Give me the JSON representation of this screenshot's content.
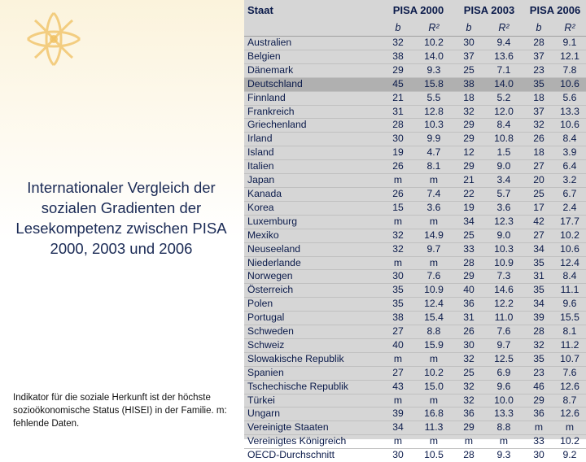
{
  "title": "Internationaler Vergleich der sozialen Gradienten der Lesekompetenz zwischen PISA 2000, 2003 und 2006",
  "footnote": "Indikator für die soziale Herkunft ist der höchste sozioökonomische Status (HISEI) in der Familie. m: fehlende Daten.",
  "colors": {
    "table_bg": "#d6d6d6",
    "highlight_row": "#b0b0b0",
    "title_text": "#1a2a55",
    "logo": "#f0c060"
  },
  "table": {
    "staat_header": "Staat",
    "year_headers": [
      "PISA 2000",
      "PISA 2003",
      "PISA 2006"
    ],
    "sub_headers": [
      "b",
      "R²",
      "b",
      "R²",
      "b",
      "R²"
    ],
    "highlight_row_index": 3,
    "rows": [
      {
        "country": "Australien",
        "vals": [
          "32",
          "10.2",
          "30",
          "9.4",
          "28",
          "9.1"
        ]
      },
      {
        "country": "Belgien",
        "vals": [
          "38",
          "14.0",
          "37",
          "13.6",
          "37",
          "12.1"
        ]
      },
      {
        "country": "Dänemark",
        "vals": [
          "29",
          "9.3",
          "25",
          "7.1",
          "23",
          "7.8"
        ]
      },
      {
        "country": "Deutschland",
        "vals": [
          "45",
          "15.8",
          "38",
          "14.0",
          "35",
          "10.6"
        ]
      },
      {
        "country": "Finnland",
        "vals": [
          "21",
          "5.5",
          "18",
          "5.2",
          "18",
          "5.6"
        ]
      },
      {
        "country": "Frankreich",
        "vals": [
          "31",
          "12.8",
          "32",
          "12.0",
          "37",
          "13.3"
        ]
      },
      {
        "country": "Griechenland",
        "vals": [
          "28",
          "10.3",
          "29",
          "8.4",
          "32",
          "10.6"
        ]
      },
      {
        "country": "Irland",
        "vals": [
          "30",
          "9.9",
          "29",
          "10.8",
          "26",
          "8.4"
        ]
      },
      {
        "country": "Island",
        "vals": [
          "19",
          "4.7",
          "12",
          "1.5",
          "18",
          "3.9"
        ]
      },
      {
        "country": "Italien",
        "vals": [
          "26",
          "8.1",
          "29",
          "9.0",
          "27",
          "6.4"
        ]
      },
      {
        "country": "Japan",
        "vals": [
          "m",
          "m",
          "21",
          "3.4",
          "20",
          "3.2"
        ]
      },
      {
        "country": "Kanada",
        "vals": [
          "26",
          "7.4",
          "22",
          "5.7",
          "25",
          "6.7"
        ]
      },
      {
        "country": "Korea",
        "vals": [
          "15",
          "3.6",
          "19",
          "3.6",
          "17",
          "2.4"
        ]
      },
      {
        "country": "Luxemburg",
        "vals": [
          "m",
          "m",
          "34",
          "12.3",
          "42",
          "17.7"
        ]
      },
      {
        "country": "Mexiko",
        "vals": [
          "32",
          "14.9",
          "25",
          "9.0",
          "27",
          "10.2"
        ]
      },
      {
        "country": "Neuseeland",
        "vals": [
          "32",
          "9.7",
          "33",
          "10.3",
          "34",
          "10.6"
        ]
      },
      {
        "country": "Niederlande",
        "vals": [
          "m",
          "m",
          "28",
          "10.9",
          "35",
          "12.4"
        ]
      },
      {
        "country": "Norwegen",
        "vals": [
          "30",
          "7.6",
          "29",
          "7.3",
          "31",
          "8.4"
        ]
      },
      {
        "country": "Österreich",
        "vals": [
          "35",
          "10.9",
          "40",
          "14.6",
          "35",
          "11.1"
        ]
      },
      {
        "country": "Polen",
        "vals": [
          "35",
          "12.4",
          "36",
          "12.2",
          "34",
          "9.6"
        ]
      },
      {
        "country": "Portugal",
        "vals": [
          "38",
          "15.4",
          "31",
          "11.0",
          "39",
          "15.5"
        ]
      },
      {
        "country": "Schweden",
        "vals": [
          "27",
          "8.8",
          "26",
          "7.6",
          "28",
          "8.1"
        ]
      },
      {
        "country": "Schweiz",
        "vals": [
          "40",
          "15.9",
          "30",
          "9.7",
          "32",
          "11.2"
        ]
      },
      {
        "country": "Slowakische Republik",
        "vals": [
          "m",
          "m",
          "32",
          "12.5",
          "35",
          "10.7"
        ]
      },
      {
        "country": "Spanien",
        "vals": [
          "27",
          "10.2",
          "25",
          "6.9",
          "23",
          "7.6"
        ]
      },
      {
        "country": "Tschechische Republik",
        "vals": [
          "43",
          "15.0",
          "32",
          "9.6",
          "46",
          "12.6"
        ]
      },
      {
        "country": "Türkei",
        "vals": [
          "m",
          "m",
          "32",
          "10.0",
          "29",
          "8.7"
        ]
      },
      {
        "country": "Ungarn",
        "vals": [
          "39",
          "16.8",
          "36",
          "13.3",
          "36",
          "12.6"
        ]
      },
      {
        "country": "Vereinigte Staaten",
        "vals": [
          "34",
          "11.3",
          "29",
          "8.8",
          "m",
          "m"
        ]
      },
      {
        "country": "Vereinigtes Königreich",
        "vals": [
          "m",
          "m",
          "m",
          "m",
          "33",
          "10.2"
        ]
      },
      {
        "country": "OECD-Durchschnitt",
        "vals": [
          "30",
          "10.5",
          "28",
          "9.3",
          "30",
          "9.2"
        ]
      }
    ]
  }
}
